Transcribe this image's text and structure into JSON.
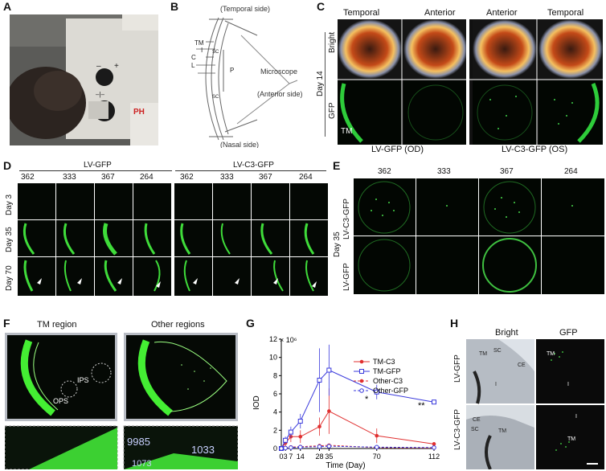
{
  "panels": {
    "A": "A",
    "B": "B",
    "C": "C",
    "D": "D",
    "E": "E",
    "F": "F",
    "G": "G",
    "H": "H"
  },
  "panelA": {
    "brand_text": "PH"
  },
  "panelB": {
    "temporal": "(Temporal side)",
    "nasal": "(Nasal side)",
    "microscope": "Microscope",
    "anterior": "(Anterior side)",
    "labels": [
      "TM",
      "I",
      "SC",
      "C",
      "L",
      "P",
      "SC"
    ]
  },
  "panelC": {
    "cols": [
      "Temporal",
      "Anterior",
      "Anterior",
      "Temporal"
    ],
    "rows": [
      "Bright",
      "GFP"
    ],
    "day": "Day 14",
    "tm": "TM",
    "groups": [
      "LV-GFP (OD)",
      "LV-C3-GFP (OS)"
    ]
  },
  "panelD": {
    "groups": [
      "LV-GFP",
      "LV-C3-GFP"
    ],
    "ids": [
      "362",
      "333",
      "367",
      "264"
    ],
    "days": [
      "Day 3",
      "Day 35",
      "Day 70"
    ]
  },
  "panelE": {
    "ids": [
      "362",
      "333",
      "367",
      "264"
    ],
    "rows": [
      "LV-C3-GFP",
      "LV-GFP"
    ],
    "day": "Day 35"
  },
  "panelF": {
    "titles": [
      "TM region",
      "Other regions"
    ],
    "ops": "OPS",
    "ips": "IPS",
    "zoom_values": [
      "9985",
      "1033",
      "1073"
    ]
  },
  "panelG": {
    "ylabel": "IOD",
    "yscale": "× 10⁶",
    "xlabel": "Time (Day)",
    "sig1": "*",
    "sig2": "**"
  },
  "panelH": {
    "cols": [
      "Bright",
      "GFP"
    ],
    "rows": [
      "LV-GFP",
      "LV-C3-GFP"
    ],
    "labels": [
      "TM",
      "SC",
      "CE",
      "I",
      "TM",
      "I",
      "CE",
      "SC",
      "TM",
      "TM",
      "I"
    ]
  },
  "chart_data": {
    "type": "line",
    "x": [
      0,
      3,
      7,
      14,
      28,
      35,
      70,
      112
    ],
    "xlim": [
      0,
      112
    ],
    "ylim": [
      0,
      12
    ],
    "yticks": [
      0,
      2,
      4,
      6,
      8,
      10,
      12
    ],
    "xticks": [
      0,
      3,
      7,
      14,
      28,
      35,
      70,
      112
    ],
    "ylabel": "IOD",
    "yunit": "× 10⁶",
    "xlabel": "Time (Day)",
    "legend_position": "top-right",
    "series": [
      {
        "name": "TM-C3",
        "color": "#e03030",
        "dash": false,
        "marker": "filled-circle",
        "values": [
          0,
          0.6,
          1.3,
          1.3,
          2.4,
          4.1,
          1.4,
          0.5
        ],
        "errors": [
          0,
          0.3,
          0.6,
          0.7,
          1.0,
          2.5,
          0.8,
          0.2
        ]
      },
      {
        "name": "TM-GFP",
        "color": "#3a3adc",
        "dash": false,
        "marker": "open-square",
        "values": [
          0,
          0.9,
          1.8,
          3.0,
          7.5,
          8.6,
          6.2,
          5.1
        ],
        "errors": [
          0,
          0.4,
          0.6,
          0.8,
          3.5,
          2.8,
          0.8,
          0.2
        ]
      },
      {
        "name": "Other-C3",
        "color": "#e03030",
        "dash": true,
        "marker": "filled-circle",
        "values": [
          0,
          0.1,
          0.15,
          0.2,
          0.3,
          0.35,
          0.1,
          0.05
        ],
        "errors": [
          0,
          0.05,
          0.05,
          0.1,
          0.1,
          0.1,
          0.05,
          0.02
        ]
      },
      {
        "name": "Other-GFP",
        "color": "#3a3adc",
        "dash": true,
        "marker": "open-circle",
        "values": [
          0,
          0.05,
          0.1,
          0.15,
          0.2,
          0.25,
          0.15,
          0.1
        ],
        "errors": [
          0,
          0.02,
          0.05,
          0.05,
          0.1,
          0.1,
          0.05,
          0.02
        ]
      }
    ]
  }
}
